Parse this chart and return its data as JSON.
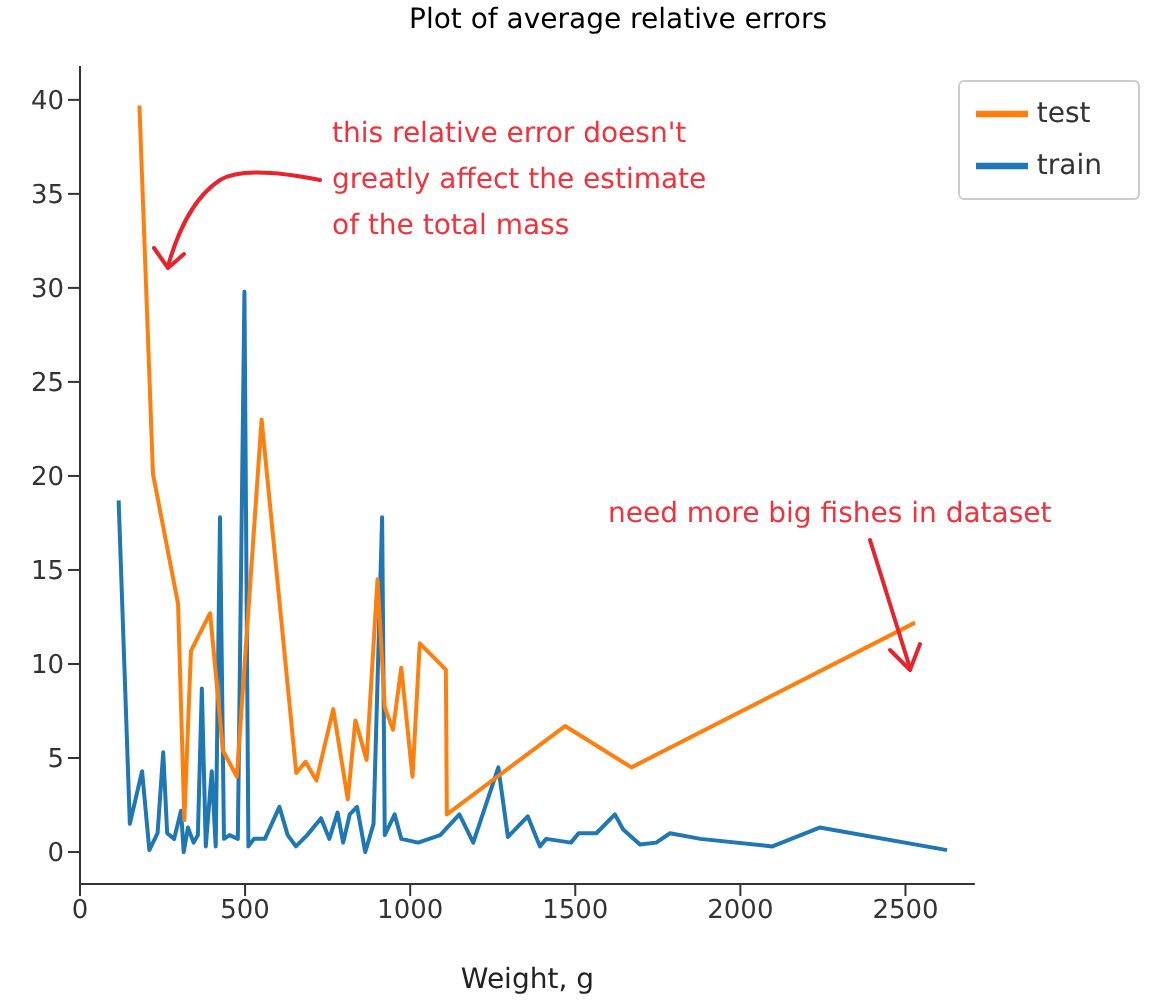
{
  "chart_data": {
    "type": "line",
    "title": "Plot of average relative errors",
    "xlabel": "Weight, g",
    "xlim": [
      0,
      2710
    ],
    "xticks": [
      0,
      500,
      1000,
      1500,
      2000,
      2500
    ],
    "ylim": [
      -1.7,
      41.8
    ],
    "yticks": [
      0,
      5,
      10,
      15,
      20,
      25,
      30,
      35,
      40
    ],
    "grid": false,
    "legend": "top right",
    "annotations": [
      "this relative error doesn't greatly affect the estimate of the total mass",
      "need more big fishes in dataset"
    ],
    "series": [
      {
        "name": "train",
        "color": "#1f77b4",
        "x": [
          117,
          151,
          188,
          210,
          235,
          252,
          264,
          285,
          306,
          314,
          327,
          344,
          357,
          369,
          381,
          399,
          411,
          424,
          436,
          453,
          478,
          498,
          510,
          527,
          560,
          604,
          629,
          654,
          688,
          730,
          755,
          780,
          797,
          817,
          839,
          864,
          889,
          915,
          923,
          953,
          973,
          1024,
          1091,
          1149,
          1191,
          1267,
          1296,
          1356,
          1393,
          1412,
          1487,
          1510,
          1564,
          1620,
          1645,
          1696,
          1745,
          1787,
          1879,
          2097,
          2240,
          2626
        ],
        "values": [
          18.7,
          1.5,
          4.3,
          0.1,
          1.0,
          5.3,
          1.0,
          0.7,
          2.2,
          0,
          1.3,
          0.5,
          0.9,
          8.7,
          0.3,
          4.3,
          0.3,
          17.8,
          0.7,
          0.9,
          0.7,
          29.8,
          0.3,
          0.7,
          0.7,
          2.4,
          0.9,
          0.3,
          0.9,
          1.8,
          0.7,
          2.1,
          0.5,
          2.0,
          2.4,
          0,
          1.5,
          17.8,
          0.9,
          2.0,
          0.7,
          0.5,
          0.9,
          2.0,
          0.5,
          4.5,
          0.8,
          1.9,
          0.3,
          0.7,
          0.5,
          1.0,
          1.0,
          2.0,
          1.2,
          0.4,
          0.5,
          1.0,
          0.7,
          0.3,
          1.3,
          0.1
        ]
      },
      {
        "name": "test",
        "color": "#ff7f0e",
        "x": [
          180,
          221,
          297,
          316,
          336,
          394,
          433,
          475,
          550,
          655,
          683,
          716,
          767,
          811,
          834,
          868,
          901,
          923,
          948,
          973,
          1007,
          1029,
          1108,
          1111,
          1469,
          1670,
          2529
        ],
        "values": [
          39.7,
          20.1,
          13.2,
          1.7,
          10.7,
          12.7,
          5.4,
          4.0,
          23.0,
          4.2,
          4.8,
          3.8,
          7.6,
          2.8,
          7.0,
          4.9,
          14.5,
          7.7,
          6.5,
          9.8,
          4.0,
          11.1,
          9.7,
          2.0,
          6.7,
          4.5,
          12.2
        ]
      }
    ]
  }
}
